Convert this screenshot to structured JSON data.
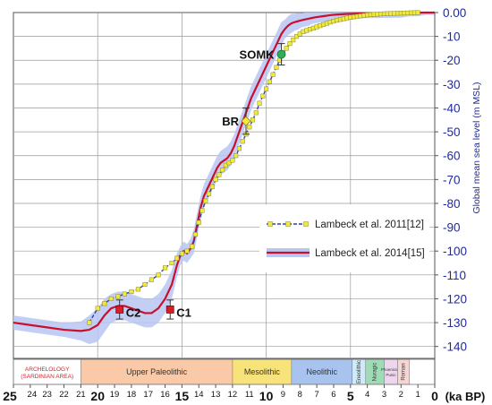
{
  "chart_data": {
    "type": "line",
    "title": "",
    "xlabel": "(ka BP)",
    "ylabel": "Global mean sea level (m MSL)",
    "xlim": [
      25,
      0
    ],
    "ylim": [
      -145,
      0
    ],
    "x_ticks": [
      {
        "label": "25",
        "value": 25,
        "major": true
      },
      {
        "label": "24",
        "value": 24
      },
      {
        "label": "23",
        "value": 23
      },
      {
        "label": "22",
        "value": 22
      },
      {
        "label": "21",
        "value": 21
      },
      {
        "label": "20",
        "value": 20,
        "major": true
      },
      {
        "label": "19",
        "value": 19
      },
      {
        "label": "18",
        "value": 18
      },
      {
        "label": "17",
        "value": 17
      },
      {
        "label": "16",
        "value": 16
      },
      {
        "label": "15",
        "value": 15,
        "major": true
      },
      {
        "label": "14",
        "value": 14
      },
      {
        "label": "13",
        "value": 13
      },
      {
        "label": "12",
        "value": 12
      },
      {
        "label": "11",
        "value": 11
      },
      {
        "label": "10",
        "value": 10,
        "major": true
      },
      {
        "label": "9",
        "value": 9
      },
      {
        "label": "8",
        "value": 8
      },
      {
        "label": "7",
        "value": 7
      },
      {
        "label": "6",
        "value": 6
      },
      {
        "label": "5",
        "value": 5,
        "major": true
      },
      {
        "label": "4",
        "value": 4
      },
      {
        "label": "3",
        "value": 3
      },
      {
        "label": "2",
        "value": 2
      },
      {
        "label": "1",
        "value": 1
      },
      {
        "label": "0",
        "value": 0,
        "major": true
      }
    ],
    "y_ticks": [
      {
        "label": "0.00",
        "value": 0
      },
      {
        "label": "-10",
        "value": -10
      },
      {
        "label": "-20",
        "value": -20
      },
      {
        "label": "-30",
        "value": -30
      },
      {
        "label": "-40",
        "value": -40
      },
      {
        "label": "-50",
        "value": -50
      },
      {
        "label": "-60",
        "value": -60
      },
      {
        "label": "-70",
        "value": -70
      },
      {
        "label": "-80",
        "value": -80
      },
      {
        "label": "-90",
        "value": -90
      },
      {
        "label": "-100",
        "value": -100
      },
      {
        "label": "-110",
        "value": -110
      },
      {
        "label": "-120",
        "value": -120
      },
      {
        "label": "-130",
        "value": -130
      },
      {
        "label": "-140",
        "value": -140
      }
    ],
    "series": [
      {
        "name": "Lambeck et al. 2011[12]",
        "color": "#2e3fa8",
        "marker_color": "#f2ea3a",
        "style": "dashed-square",
        "x": [
          20.5,
          20.0,
          19.6,
          19.2,
          18.8,
          18.4,
          18.0,
          17.6,
          17.2,
          16.8,
          16.4,
          16.0,
          15.6,
          15.3,
          15.0,
          14.7,
          14.4,
          14.2,
          14.0,
          13.8,
          13.6,
          13.4,
          13.2,
          13.0,
          12.8,
          12.6,
          12.4,
          12.2,
          12.0,
          11.8,
          11.6,
          11.4,
          11.2,
          11.0,
          10.8,
          10.6,
          10.4,
          10.2,
          10.0,
          9.8,
          9.6,
          9.4,
          9.2,
          9.0,
          8.8,
          8.6,
          8.4,
          8.2,
          8.0,
          7.8,
          7.6,
          7.4,
          7.2,
          7.0,
          6.8,
          6.6,
          6.4,
          6.2,
          6.0,
          5.8,
          5.6,
          5.4,
          5.2,
          5.0,
          4.8,
          4.6,
          4.4,
          4.2,
          4.0,
          3.8,
          3.6,
          3.4,
          3.2,
          3.0,
          2.8,
          2.6,
          2.4,
          2.2,
          2.0,
          1.8,
          1.6,
          1.4,
          1.2,
          1.0
        ],
        "y": [
          -130,
          -124,
          -122,
          -120,
          -119,
          -118,
          -117,
          -116,
          -114,
          -112,
          -110,
          -107,
          -105,
          -103,
          -101,
          -100,
          -98,
          -93,
          -88,
          -83,
          -79,
          -76,
          -73,
          -70,
          -68,
          -66,
          -64,
          -63,
          -62,
          -60,
          -57,
          -54,
          -51,
          -48,
          -45,
          -42,
          -38,
          -35,
          -32,
          -29,
          -26,
          -23,
          -20,
          -17,
          -15,
          -13,
          -11.5,
          -10,
          -9,
          -8,
          -7.5,
          -7,
          -6.5,
          -6,
          -5.5,
          -5,
          -4.5,
          -4,
          -3.6,
          -3.2,
          -2.9,
          -2.6,
          -2.3,
          -2.0,
          -1.8,
          -1.6,
          -1.4,
          -1.2,
          -1.0,
          -0.9,
          -0.8,
          -0.7,
          -0.6,
          -0.5,
          -0.45,
          -0.4,
          -0.35,
          -0.3,
          -0.25,
          -0.2,
          -0.15,
          -0.1,
          -0.05,
          0
        ]
      },
      {
        "name": "Lambeck et al. 2014[15]",
        "color": "#c8102e",
        "style": "solid",
        "x": [
          25,
          24,
          23,
          22,
          21,
          20.5,
          20.0,
          19.6,
          19.2,
          18.8,
          18.4,
          18.0,
          17.6,
          17.2,
          16.8,
          16.4,
          16.0,
          15.6,
          15.3,
          15.1,
          14.9,
          14.7,
          14.5,
          14.3,
          14.1,
          13.9,
          13.7,
          13.5,
          13.3,
          13.1,
          12.9,
          12.7,
          12.5,
          12.3,
          12.1,
          11.9,
          11.7,
          11.5,
          11.3,
          11.1,
          10.9,
          10.7,
          10.5,
          10.3,
          10.1,
          9.9,
          9.7,
          9.5,
          9.3,
          9.1,
          8.9,
          8.7,
          8.5,
          8.3,
          8.1,
          7.9,
          7.7,
          7.5,
          7.3,
          7.1,
          6.9,
          6.7,
          6.5,
          6.3,
          6.1,
          5.9,
          5.7,
          5.5,
          5.3,
          5.1,
          4.9,
          4.5,
          4.0,
          3.5,
          3.0,
          2.5,
          2.0,
          1.5,
          1.0,
          0.5,
          0
        ],
        "y": [
          -130,
          -131,
          -132,
          -133,
          -133.5,
          -133,
          -131,
          -127,
          -124,
          -123,
          -123,
          -124,
          -125,
          -126,
          -126,
          -124,
          -120,
          -114,
          -106,
          -102,
          -100,
          -101,
          -99,
          -96,
          -89,
          -82,
          -77,
          -74,
          -71,
          -68,
          -65,
          -63,
          -62,
          -61,
          -59,
          -56,
          -52,
          -48,
          -44,
          -40,
          -36,
          -33,
          -30,
          -27,
          -24,
          -21,
          -18,
          -15,
          -12,
          -9,
          -7,
          -5.5,
          -4.5,
          -4,
          -3.6,
          -3.2,
          -2.9,
          -2.6,
          -2.3,
          -2.0,
          -1.8,
          -1.6,
          -1.4,
          -1.2,
          -1.0,
          -0.9,
          -0.8,
          -0.7,
          -0.6,
          -0.55,
          -0.5,
          -0.4,
          -0.35,
          -0.3,
          -0.25,
          -0.2,
          -0.15,
          -0.1,
          -0.05,
          0,
          0
        ]
      }
    ],
    "uncertainty_band": {
      "color": "#b9c6f2",
      "x": [
        25,
        24,
        23,
        22,
        21,
        20.5,
        20.0,
        19.6,
        19.2,
        18.8,
        18.4,
        18.0,
        17.6,
        17.2,
        16.8,
        16.4,
        16.0,
        15.6,
        15.3,
        15.1,
        14.9,
        14.7,
        14.5,
        14.3,
        14.1,
        13.9,
        13.7,
        13.5,
        13.3,
        13.1,
        12.9,
        12.7,
        12.5,
        12.3,
        12.1,
        11.9,
        11.7,
        11.5,
        11.3,
        11.1,
        10.9,
        10.7,
        10.5,
        10.3,
        10.1,
        9.9,
        9.7,
        9.5,
        9.3,
        9.1,
        8.9,
        8.7,
        8.5,
        8.3,
        8.1,
        7.9,
        7.7,
        7.5,
        7.3,
        7.1,
        6.9,
        6.7,
        6.5,
        6.3,
        6.1,
        5.9,
        5.7,
        5.5,
        5.3,
        5.1,
        4.9,
        4.5,
        4.0,
        3.5,
        3.0,
        2.5,
        2.0,
        1.5,
        1.0,
        0.5,
        0
      ],
      "half_width": [
        3,
        3,
        3,
        3,
        4,
        6,
        7,
        7,
        6,
        6,
        6,
        6,
        6,
        6,
        6,
        6,
        6,
        6,
        5,
        4,
        4,
        4,
        4,
        5,
        5,
        5,
        5,
        5,
        5,
        5,
        5,
        5,
        5,
        5,
        5,
        5,
        5,
        5,
        5,
        5,
        5,
        5,
        5,
        5,
        5,
        5,
        5,
        5,
        5,
        5,
        4,
        4,
        4,
        3.5,
        3.5,
        3,
        3,
        3,
        2.5,
        2.5,
        2.5,
        2.5,
        2.5,
        2,
        2,
        2,
        2,
        2,
        2,
        2,
        2,
        2,
        2,
        2,
        2,
        2,
        2,
        1.5,
        1.5,
        1,
        1
      ]
    },
    "points": [
      {
        "label": "SOMK",
        "x": 9.1,
        "y": -17.5,
        "err": 4.5,
        "color": "#2fae5a",
        "shape": "circle"
      },
      {
        "label": "BR",
        "x": 11.2,
        "y": -45.5,
        "err": 5.5,
        "color": "#f6e93a",
        "shape": "diamond"
      },
      {
        "label": "C2",
        "x": 18.7,
        "y": -124.5,
        "err": 4,
        "color": "#d71f26",
        "shape": "square"
      },
      {
        "label": "C1",
        "x": 15.7,
        "y": -124.5,
        "err": 4,
        "color": "#d71f26",
        "shape": "square"
      }
    ],
    "periods": [
      {
        "label": "ARCHELOLOGY\n(SARDINIAN AREA)",
        "start": 25,
        "end": 21.0,
        "color": "#ffffff",
        "text_color": "#d71f26"
      },
      {
        "label": "Upper Paleolithic",
        "start": 21.0,
        "end": 12.0,
        "color": "#f9c9a8"
      },
      {
        "label": "Mesolithic",
        "start": 12.0,
        "end": 8.5,
        "color": "#f8e27a"
      },
      {
        "label": "Neolithic",
        "start": 8.5,
        "end": 4.9,
        "color": "#a8c3ee"
      },
      {
        "label": "Eneolithic",
        "start": 4.9,
        "end": 4.1,
        "color": "#cfeaf8"
      },
      {
        "label": "Nuragic",
        "start": 4.1,
        "end": 3.0,
        "color": "#9fdcb5"
      },
      {
        "label": "Phoenician Punic",
        "start": 3.0,
        "end": 2.2,
        "color": "#efd6ef"
      },
      {
        "label": "Roman",
        "start": 2.2,
        "end": 1.5,
        "color": "#f6d6d2"
      }
    ],
    "grid": true,
    "legend_position": "center-right"
  }
}
